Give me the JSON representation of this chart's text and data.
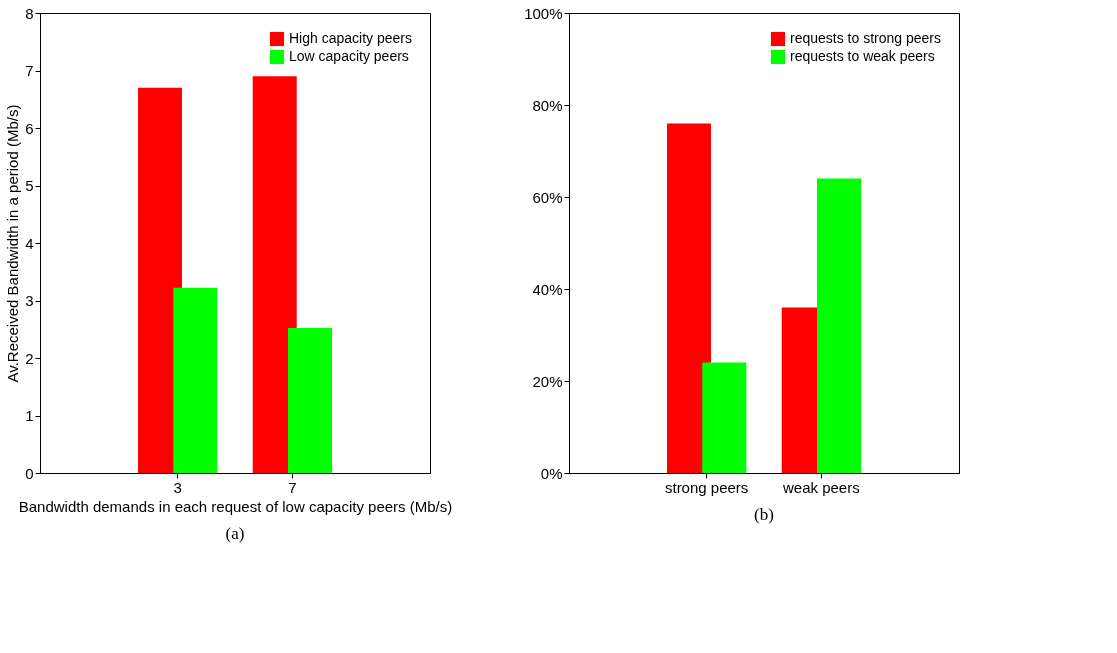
{
  "chart_data": [
    {
      "type": "bar",
      "xlabel": "Bandwidth demands in each request of low capacity peers (Mb/s)",
      "ylabel": "Av.Received Bandwidth in a period (Mb/s)",
      "categories": [
        "3",
        "7"
      ],
      "ylim": [
        0,
        8
      ],
      "yticks": [
        0,
        1,
        2,
        3,
        4,
        5,
        6,
        7,
        8
      ],
      "grid": false,
      "legend": "top right",
      "annotations": [
        "(a)"
      ],
      "series": [
        {
          "name": "High capacity peers",
          "color": "#ff0000",
          "values": [
            6.7,
            6.9
          ]
        },
        {
          "name": "Low capacity peers",
          "color": "#00ff00",
          "values": [
            3.22,
            2.52
          ]
        }
      ]
    },
    {
      "type": "bar",
      "categories": [
        "strong peers",
        "weak peers"
      ],
      "ylim": [
        0,
        100
      ],
      "yticks": [
        {
          "value": 0,
          "label": "0%"
        },
        {
          "value": 20,
          "label": "20%"
        },
        {
          "value": 40,
          "label": "40%"
        },
        {
          "value": 60,
          "label": "60%"
        },
        {
          "value": 80,
          "label": "80%"
        },
        {
          "value": 100,
          "label": "100%"
        }
      ],
      "grid": false,
      "legend": "top right",
      "annotations": [
        "(b)"
      ],
      "series": [
        {
          "name": "requests to strong peers",
          "color": "#ff0000",
          "values": [
            76,
            36
          ]
        },
        {
          "name": "requests to weak peers",
          "color": "#00ff00",
          "values": [
            24,
            64
          ]
        }
      ]
    }
  ]
}
